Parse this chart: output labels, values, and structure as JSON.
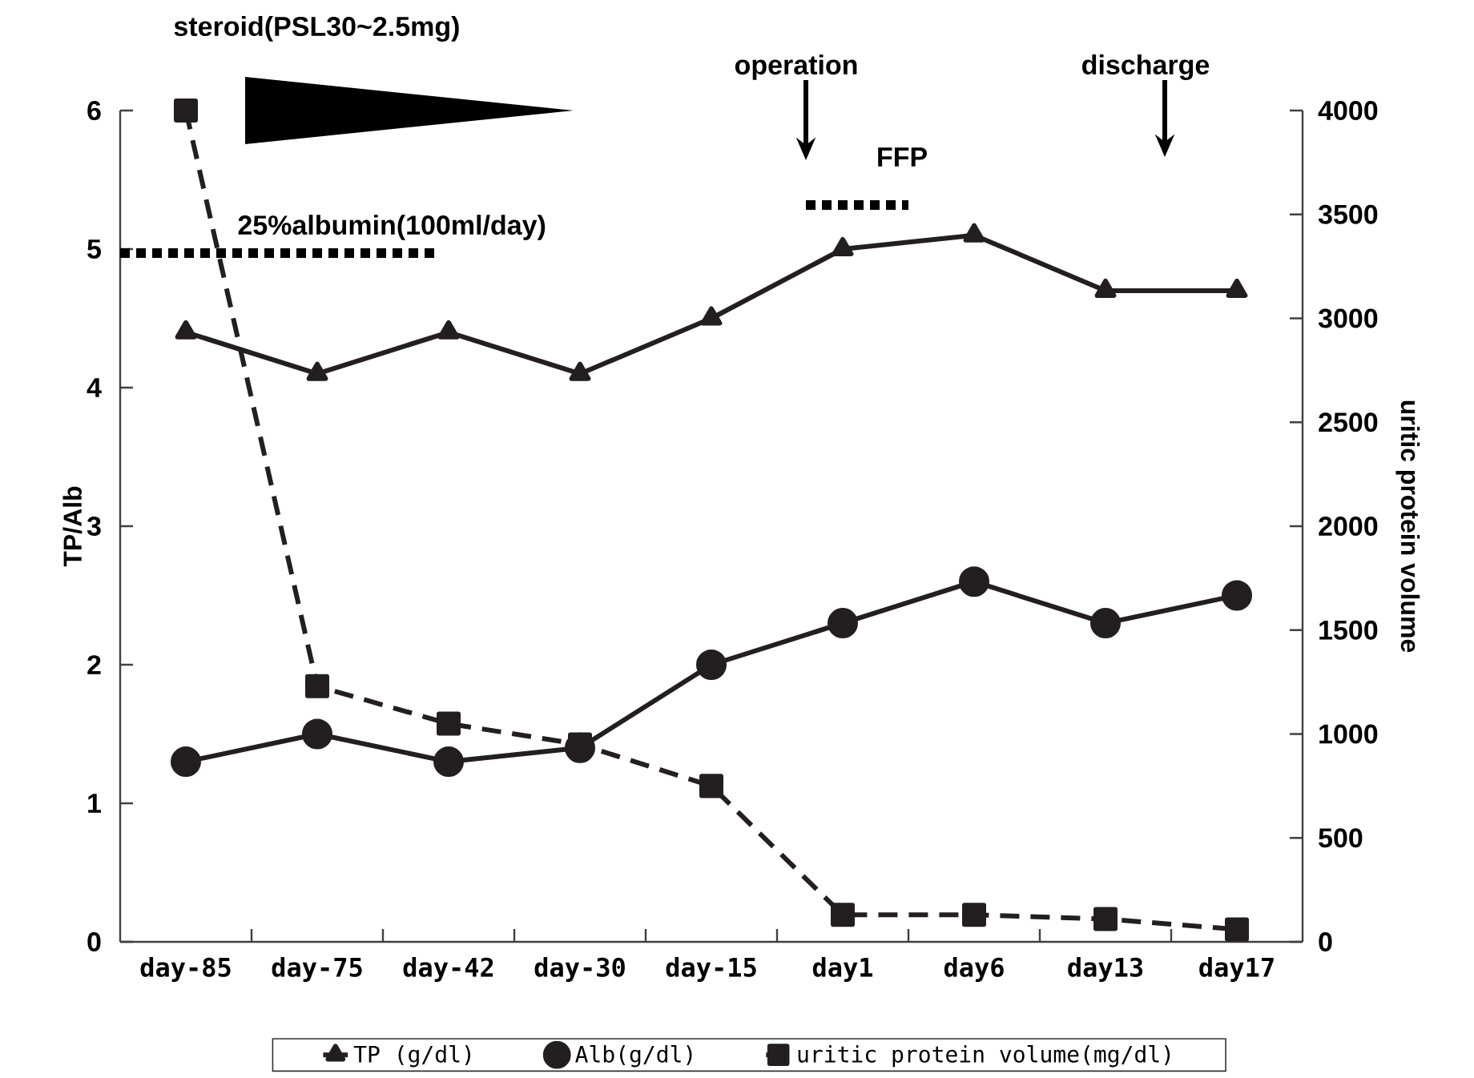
{
  "chart_data": {
    "type": "line",
    "categories": [
      "day-85",
      "day-75",
      "day-42",
      "day-30",
      "day-15",
      "day1",
      "day6",
      "day13",
      "day17"
    ],
    "ylabel": "TP/Alb",
    "y2label": "uritic protein volume",
    "ylim": [
      0,
      6
    ],
    "yticks": [
      0,
      1,
      2,
      3,
      4,
      5,
      6
    ],
    "y2lim": [
      0,
      4000
    ],
    "y2ticks": [
      0,
      500,
      1000,
      1500,
      2000,
      2500,
      3000,
      3500,
      4000
    ],
    "legend": "bottom",
    "series": [
      {
        "name": "TP (g/dl)",
        "color": "#231f20",
        "marker": "triangle",
        "line_style": "solid",
        "values": [
          4.4,
          4.1,
          4.4,
          4.1,
          4.5,
          5.0,
          5.1,
          4.7,
          4.7
        ]
      },
      {
        "name": "Alb(g/dl)",
        "color": "#231f20",
        "marker": "circle",
        "line_style": "solid",
        "values": [
          1.3,
          1.5,
          1.3,
          1.4,
          2.0,
          2.3,
          2.6,
          2.3,
          2.5
        ]
      },
      {
        "name": "uritic protein volume(mg/dl)",
        "color": "#231f20",
        "marker": "square",
        "line_style": "dashed",
        "axis": "y2",
        "values": [
          4000,
          1230,
          1050,
          950,
          750,
          130,
          130,
          110,
          60
        ]
      }
    ],
    "annotations": [
      "steroid(PSL30~2.5mg)",
      "25%albumin(100ml/day)",
      "operation",
      "FFP",
      "discharge"
    ]
  }
}
